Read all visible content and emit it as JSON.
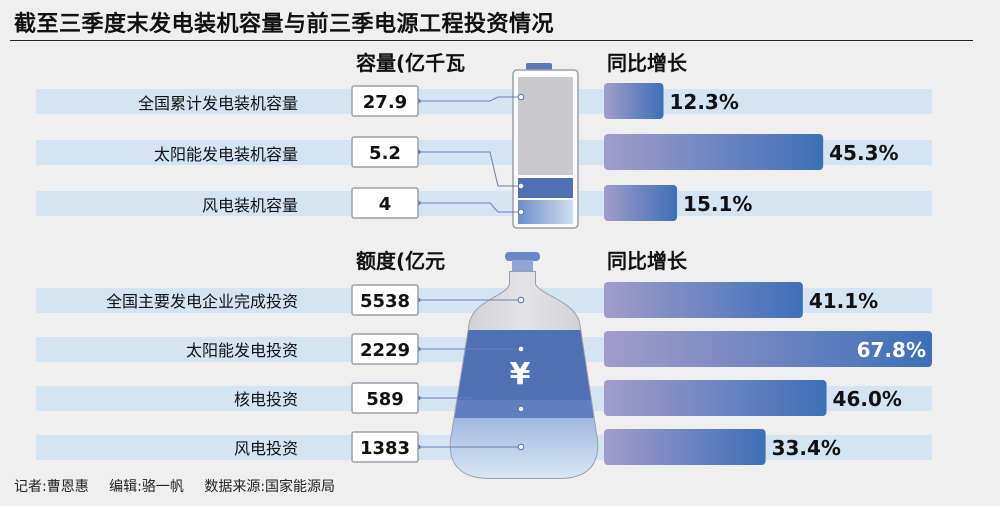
{
  "title": "截至三季度末发电装机容量与前三季电源工程投资情况",
  "credits": {
    "reporter": "记者:曹恩惠",
    "editor": "编辑:骆一帆",
    "source": "数据来源:国家能源局"
  },
  "chart_data": [
    {
      "type": "bar",
      "header_value": "容量(亿千瓦",
      "header_growth": "同比增长",
      "categories": [
        "全国累计发电装机容量",
        "太阳能发电装机容量",
        "风电装机容量"
      ],
      "values": [
        27.9,
        5.2,
        4
      ],
      "value_labels": [
        "27.9",
        "5.2",
        "4"
      ],
      "growth": [
        12.3,
        45.3,
        15.1
      ],
      "growth_labels": [
        "12.3%",
        "45.3%",
        "15.1%"
      ]
    },
    {
      "type": "bar",
      "header_value": "额度(亿元",
      "header_growth": "同比增长",
      "categories": [
        "全国主要发电企业完成投资",
        "太阳能发电投资",
        "核电投资",
        "风电投资"
      ],
      "values": [
        5538,
        2229,
        589,
        1383
      ],
      "value_labels": [
        "5538",
        "2229",
        "589",
        "1383"
      ],
      "growth": [
        41.1,
        67.8,
        46.0,
        33.4
      ],
      "growth_labels": [
        "41.1%",
        "67.8%",
        "46.0%",
        "33.4%"
      ],
      "currency_symbol": "¥"
    }
  ],
  "colors": {
    "row_stripe": "#d4e4f3",
    "bar_start": "#9a94c6",
    "bar_end": "#3d6fb8",
    "flask_blue": "#5a78b8",
    "battery_gray": "#c9c9cd"
  }
}
